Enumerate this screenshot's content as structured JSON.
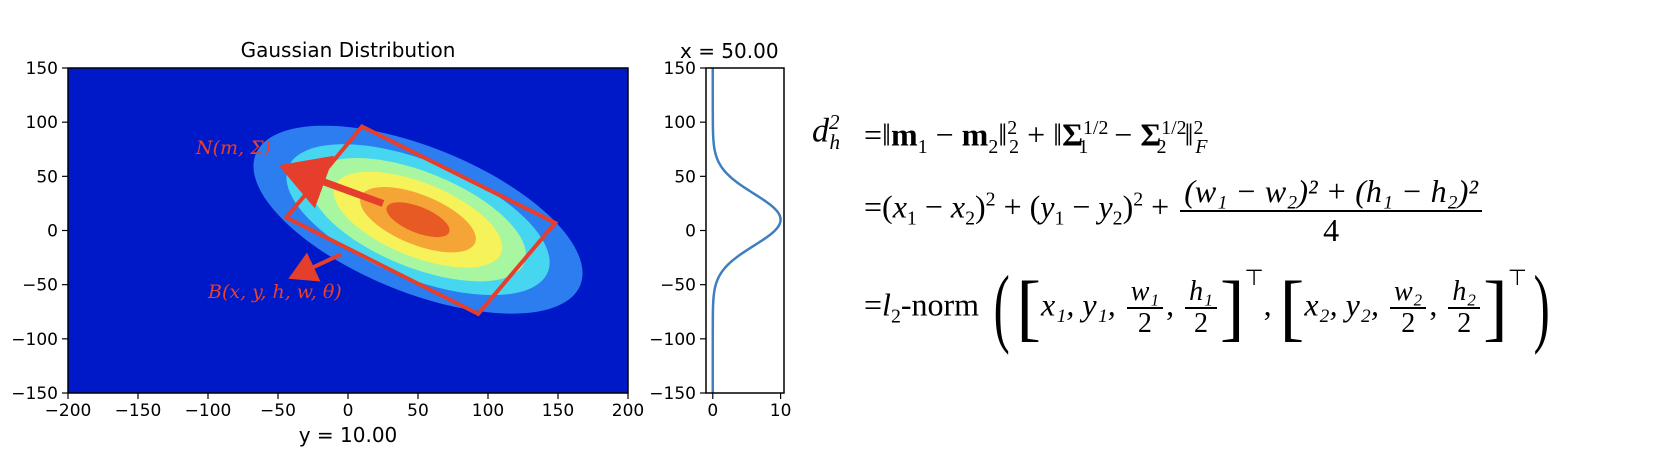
{
  "chart_data": [
    {
      "type": "heatmap",
      "subtype": "filled-contour",
      "title": "Gaussian Distribution",
      "xlabel": "y = 10.00",
      "ylabel": "",
      "xlim": [
        -200,
        200
      ],
      "ylim": [
        -150,
        150
      ],
      "xticks": [
        -200,
        -150,
        -100,
        -50,
        0,
        50,
        100,
        150,
        200
      ],
      "yticks": [
        150,
        100,
        50,
        0,
        -50,
        -100,
        -150
      ],
      "xtick_labels": [
        "−200",
        "−150",
        "−100",
        "−50",
        "0",
        "50",
        "100",
        "150",
        "200"
      ],
      "ytick_labels": [
        "150",
        "100",
        "50",
        "0",
        "−50",
        "−100",
        "−150"
      ],
      "gaussian": {
        "mean": [
          50,
          10
        ],
        "rotation_deg": -22,
        "contour_semi_axes": [
          [
            125,
            67
          ],
          [
            100,
            54
          ],
          [
            82,
            44
          ],
          [
            64,
            34
          ],
          [
            44,
            23
          ],
          [
            24,
            12
          ]
        ]
      },
      "contour_colors": [
        "#0a2dd6",
        "#2c7df0",
        "#46d6f0",
        "#a8f6a0",
        "#f6f35a",
        "#f5a535",
        "#e85a23",
        "#c62a1e"
      ],
      "background_color": "#0019c8",
      "box": {
        "corners": [
          [
            10,
            96
          ],
          [
            148,
            7
          ],
          [
            93,
            -77
          ],
          [
            -44,
            12
          ]
        ],
        "color": "#e53e2d"
      },
      "annotations": [
        {
          "label": "N(m, Σ)",
          "arrow_from": [
            25,
            25
          ],
          "arrow_to": [
            -45,
            58
          ]
        },
        {
          "label": "B(x, y, h, w, θ)",
          "arrow_from": [
            -5,
            -22
          ],
          "arrow_to": [
            -40,
            -43
          ]
        }
      ]
    },
    {
      "type": "line",
      "title": "x = 50.00",
      "xlim": [
        -1,
        10.5
      ],
      "ylim": [
        -150,
        150
      ],
      "xticks": [
        0,
        10
      ],
      "yticks": [
        150,
        100,
        50,
        0,
        -50,
        -100,
        -150
      ],
      "xtick_labels": [
        "0",
        "10"
      ],
      "ytick_labels": [
        "150",
        "100",
        "50",
        "0",
        "−50",
        "−100",
        "−150"
      ],
      "curve": {
        "peak": 10,
        "mean": 10,
        "sigma": 24
      },
      "color": "#3f7fbf"
    }
  ],
  "formula": {
    "lhs": "d",
    "lhs_sub": "h",
    "lhs_sup": "2",
    "row1": {
      "eq": "=‖",
      "m1": "m",
      "s1": "1",
      "minus1": " − ",
      "m2": "m",
      "s2": "2",
      "norm_close": "‖",
      "norm_sub": "2",
      "norm_sup": "2",
      "plus": " + ‖",
      "sig1": "Σ",
      "sig1_sub": "1",
      "half1": "1/2",
      "minus2": " − ",
      "sig2": "Σ",
      "sig2_sub": "2",
      "half2": "1/2",
      "norm2_close": "‖",
      "f_sub": "F",
      "f_sup": "2"
    },
    "row2": {
      "eq": "=(",
      "x1": "x",
      "s1": "1",
      "minus1": " − ",
      "x2": "x",
      "s2": "2",
      "close1": ")",
      "sq1": "2",
      "plus1": " + (",
      "y1": "y",
      "s3": "1",
      "minus2": " − ",
      "y2": "y",
      "s4": "2",
      "close2": ")",
      "sq2": "2",
      "plus2": " + ",
      "num": "(w₁ − w₂)² + (h₁ − h₂)²",
      "den": "4"
    },
    "row3": {
      "eq": "=",
      "l": "l",
      "l_sub": "2",
      "norm_text": "-norm",
      "paren_open": "(",
      "brack_open": "[",
      "a1": "x₁, y₁, ",
      "w1": "w₁",
      "two1": "2",
      "comma1": ", ",
      "h1": "h₁",
      "two2": "2",
      "brack_close": "]",
      "transpose": "⊤",
      "comma2": ", ",
      "brack_open2": "[",
      "a2": "x₂, y₂, ",
      "w2": "w₂",
      "two3": "2",
      "comma3": ", ",
      "h2": "h₂",
      "two4": "2",
      "brack_close2": "]",
      "transpose2": "⊤",
      "paren_close": ")"
    }
  }
}
